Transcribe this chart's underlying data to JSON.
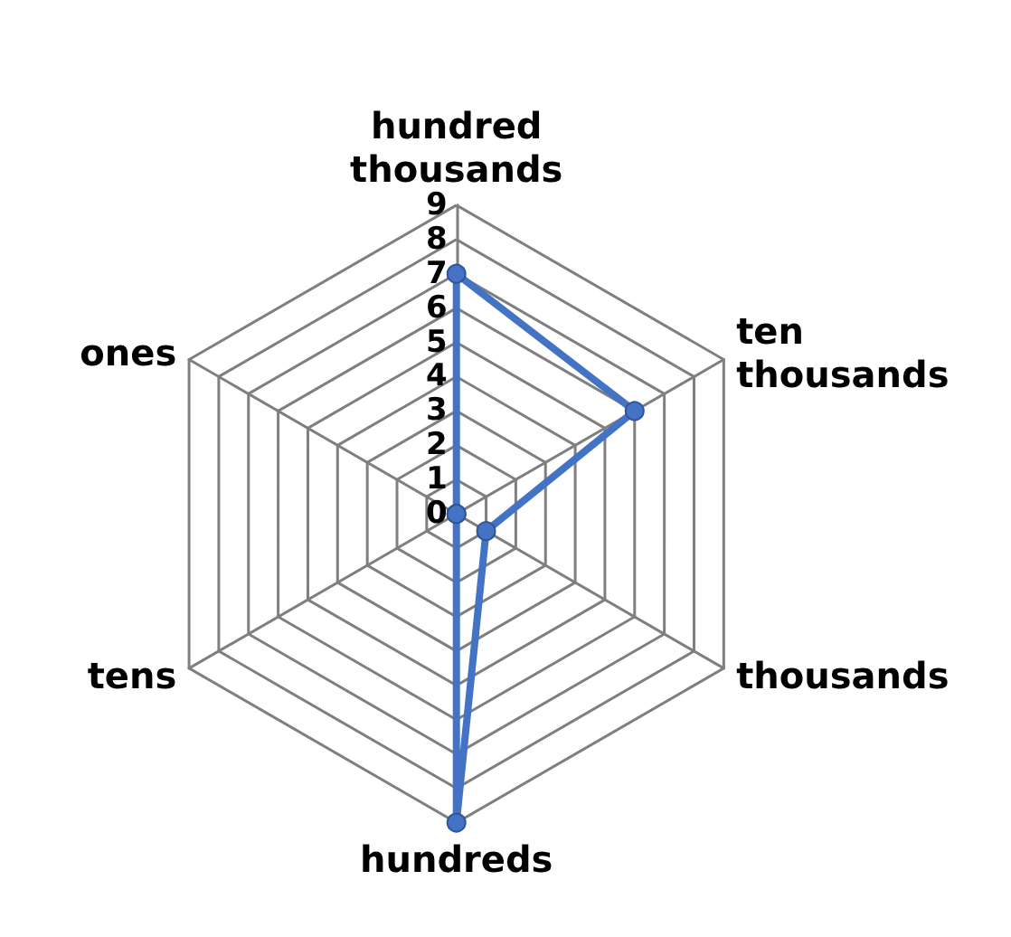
{
  "chart_data": {
    "type": "radar",
    "categories": [
      "hundred\nthousands",
      "ten\nthousands",
      "thousands",
      "hundreds",
      "tens",
      "ones"
    ],
    "series": [
      {
        "color": "#4472c4",
        "values": [
          7,
          6,
          1,
          9,
          0,
          0
        ]
      }
    ],
    "ylim": [
      0,
      9
    ],
    "yticks": [
      0,
      1,
      2,
      3,
      4,
      5,
      6,
      7,
      8,
      9
    ],
    "grid": true,
    "marker": "circle",
    "line_style": "solid"
  }
}
